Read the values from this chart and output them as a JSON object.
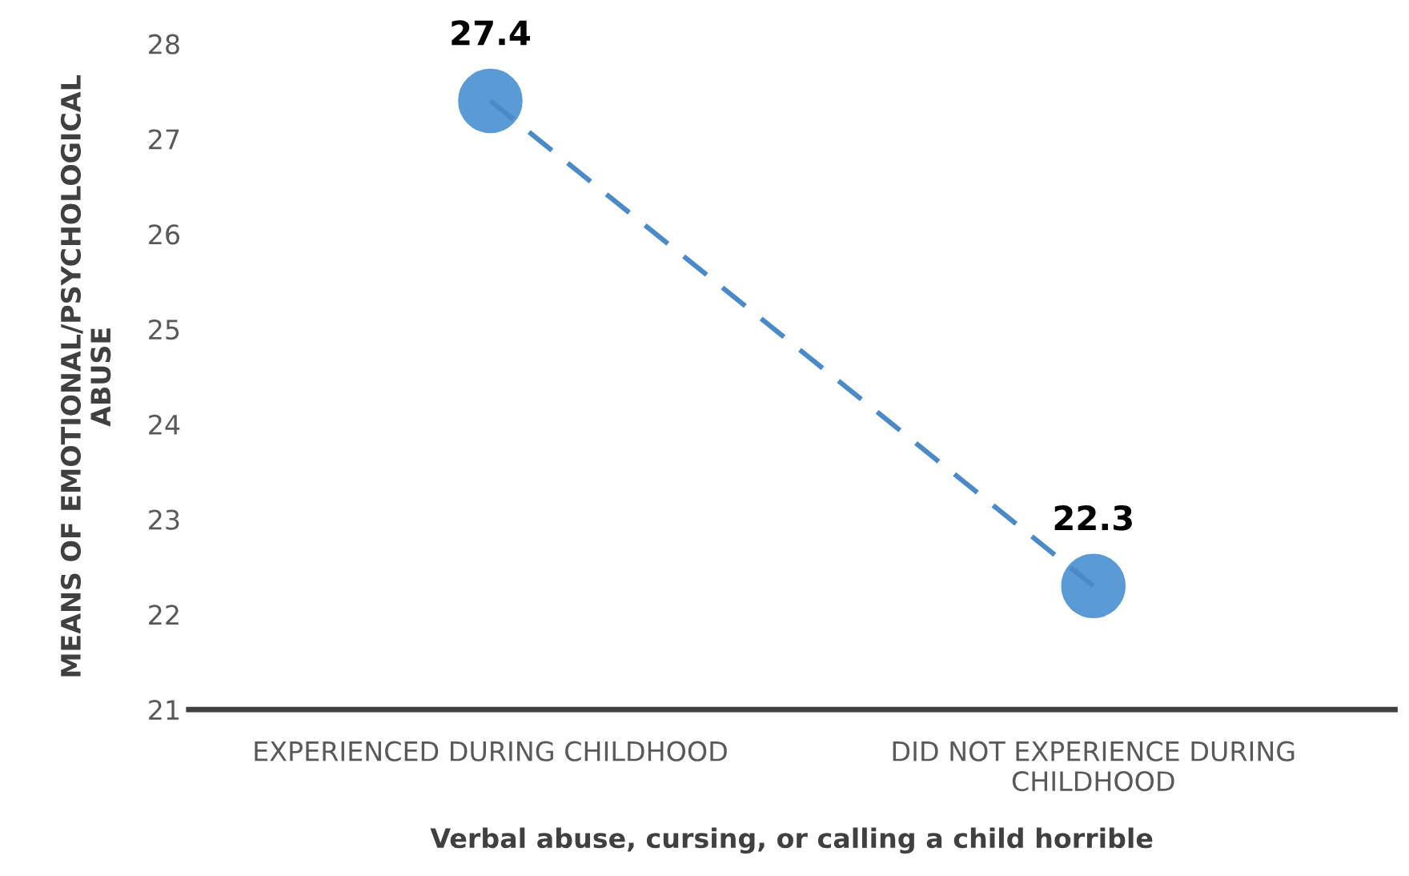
{
  "chart_data": {
    "type": "line",
    "categories": [
      "EXPERIENCED DURING CHILDHOOD",
      "DID NOT EXPERIENCE DURING\nCHILDHOOD"
    ],
    "series": [
      {
        "color": "#5b9bd5",
        "values": [
          27.4,
          22.3
        ]
      }
    ],
    "xlabel": "Verbal abuse, cursing, or calling a child horrible",
    "ylabel": "MEANS OF EMOTIONAL/PSYCHOLOGICAL\nABUSE",
    "ylim": [
      21,
      28
    ],
    "yticks": [
      21,
      22,
      23,
      24,
      25,
      26,
      27,
      28
    ],
    "marker": "circle",
    "line_style": "dashed",
    "data_labels": true,
    "grid": false,
    "legend": false
  }
}
